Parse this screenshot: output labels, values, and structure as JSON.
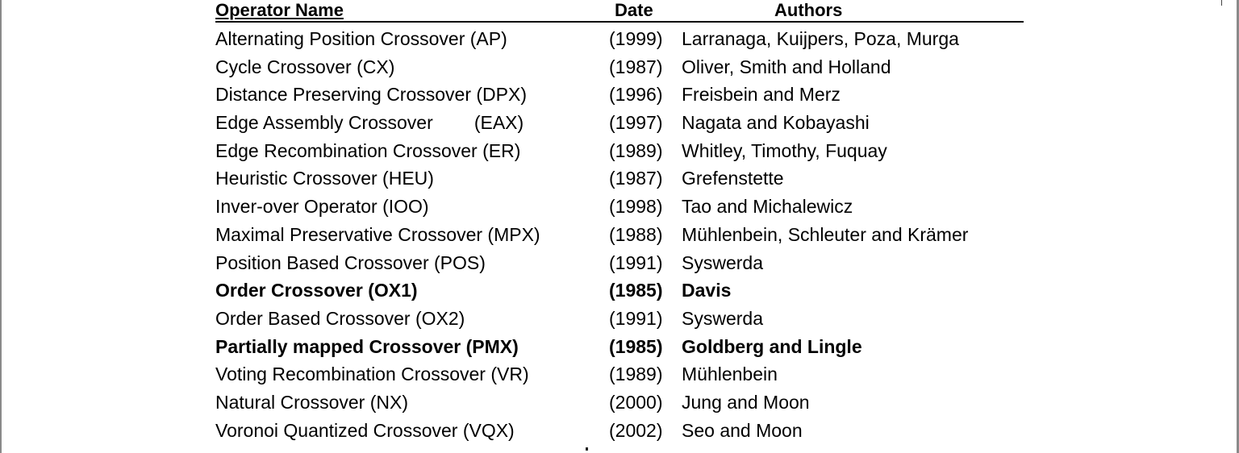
{
  "table": {
    "headers": {
      "name": "Operator Name",
      "date": "Date",
      "authors": "Authors"
    },
    "rows": [
      {
        "name": "Alternating Position Crossover (AP)",
        "date": "(1999)",
        "authors": "Larranaga, Kuijpers, Poza, Murga",
        "bold": false
      },
      {
        "name": "Cycle Crossover (CX)",
        "date": "(1987)",
        "authors": "Oliver, Smith and Holland",
        "bold": false
      },
      {
        "name": "Distance Preserving Crossover (DPX)",
        "date": "(1996)",
        "authors": "Freisbein and Merz",
        "bold": false
      },
      {
        "name": "Edge Assembly Crossover        (EAX)",
        "date": "(1997)",
        "authors": "Nagata and Kobayashi",
        "bold": false
      },
      {
        "name": "Edge Recombination Crossover (ER)",
        "date": "(1989)",
        "authors": "Whitley, Timothy, Fuquay",
        "bold": false
      },
      {
        "name": "Heuristic Crossover (HEU)",
        "date": "(1987)",
        "authors": "Grefenstette",
        "bold": false
      },
      {
        "name": "Inver-over Operator (IOO)",
        "date": "(1998)",
        "authors": "Tao and Michalewicz",
        "bold": false
      },
      {
        "name": "Maximal Preservative Crossover (MPX)",
        "date": "(1988)",
        "authors": "Mühlenbein, Schleuter and Krämer",
        "bold": false
      },
      {
        "name": "Position Based Crossover (POS)",
        "date": "(1991)",
        "authors": "Syswerda",
        "bold": false
      },
      {
        "name": "Order Crossover (OX1)",
        "date": "(1985)",
        "authors": "Davis",
        "bold": true
      },
      {
        "name": "Order Based Crossover (OX2)",
        "date": "(1991)",
        "authors": "Syswerda",
        "bold": false
      },
      {
        "name": "Partially mapped Crossover (PMX)",
        "date": "(1985)",
        "authors": "Goldberg and Lingle",
        "bold": true
      },
      {
        "name": "Voting Recombination Crossover (VR)",
        "date": "(1989)",
        "authors": "Mühlenbein",
        "bold": false
      },
      {
        "name": "Natural Crossover (NX)",
        "date": "(2000)",
        "authors": "Jung and Moon",
        "bold": false
      },
      {
        "name": "Voronoi Quantized Crossover (VQX)",
        "date": "(2002)",
        "authors": "Seo and Moon",
        "bold": false
      }
    ]
  }
}
